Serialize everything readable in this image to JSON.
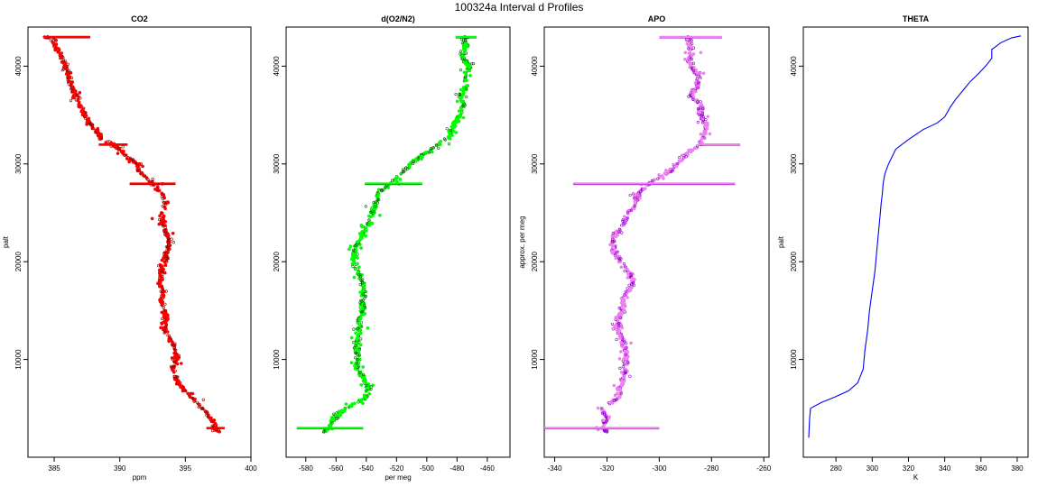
{
  "figure": {
    "title": "100324a   Interval d Profiles"
  },
  "chart_data": [
    {
      "type": "scatter",
      "title": "CO2",
      "xlabel": "ppm",
      "ylabel": "palt",
      "xlim": [
        383,
        400
      ],
      "ylim": [
        0,
        44000
      ],
      "xticks": [
        "385",
        "390",
        "395",
        "400"
      ],
      "yticks": [
        "10000",
        "20000",
        "30000",
        "40000"
      ],
      "color": "#ff0000",
      "edge_color": "#8b0000",
      "series": [
        {
          "values": [
            [
              384.5,
              43000
            ],
            [
              385.0,
              42200
            ],
            [
              385.6,
              41000
            ],
            [
              386.0,
              39500
            ],
            [
              386.3,
              38000
            ],
            [
              386.8,
              36500
            ],
            [
              387.3,
              35000
            ],
            [
              387.9,
              33800
            ],
            [
              388.6,
              32600
            ],
            [
              389.5,
              32000
            ],
            [
              390.3,
              31000
            ],
            [
              391.3,
              30000
            ],
            [
              391.6,
              29000
            ],
            [
              392.5,
              28000
            ],
            [
              393.2,
              27000
            ],
            [
              393.5,
              26000
            ],
            [
              393.2,
              25000
            ],
            [
              393.3,
              24000
            ],
            [
              393.5,
              23000
            ],
            [
              393.8,
              22000
            ],
            [
              393.6,
              21000
            ],
            [
              393.4,
              20000
            ],
            [
              393.2,
              19000
            ],
            [
              393.1,
              18000
            ],
            [
              393.3,
              17000
            ],
            [
              393.2,
              16000
            ],
            [
              393.4,
              15000
            ],
            [
              393.6,
              14000
            ],
            [
              393.4,
              13000
            ],
            [
              393.9,
              12000
            ],
            [
              394.2,
              11000
            ],
            [
              394.4,
              10000
            ],
            [
              394.0,
              9000
            ],
            [
              394.3,
              8000
            ],
            [
              394.8,
              7000
            ],
            [
              395.6,
              6000
            ],
            [
              396.3,
              5000
            ],
            [
              396.9,
              4000
            ],
            [
              397.3,
              3000
            ],
            [
              397.6,
              2600
            ]
          ]
        }
      ],
      "bands": [
        [
          43000,
          386.0,
          3.5
        ],
        [
          32000,
          389.5,
          2.2
        ],
        [
          28000,
          392.5,
          3.5
        ],
        [
          3000,
          397.3,
          1.4
        ]
      ]
    },
    {
      "type": "scatter",
      "title": "d(O2/N2)",
      "xlabel": "per meg",
      "ylabel": "",
      "xlim": [
        -593,
        -445
      ],
      "ylim": [
        0,
        44000
      ],
      "xticks": [
        "-580",
        "-560",
        "-540",
        "-520",
        "-500",
        "-480",
        "-460"
      ],
      "yticks": [
        "10000",
        "20000",
        "30000",
        "40000"
      ],
      "color": "#00ff00",
      "edge_color": "#006400",
      "series": [
        {
          "values": [
            [
              -475,
              43000
            ],
            [
              -474,
              42000
            ],
            [
              -477,
              41000
            ],
            [
              -472,
              40000
            ],
            [
              -474,
              39000
            ],
            [
              -473,
              38000
            ],
            [
              -478,
              37000
            ],
            [
              -476,
              36000
            ],
            [
              -478,
              35000
            ],
            [
              -482,
              34000
            ],
            [
              -484,
              33000
            ],
            [
              -492,
              32000
            ],
            [
              -502,
              31000
            ],
            [
              -511,
              30000
            ],
            [
              -517,
              29000
            ],
            [
              -524,
              28000
            ],
            [
              -532,
              27000
            ],
            [
              -534,
              26000
            ],
            [
              -536,
              25000
            ],
            [
              -538,
              24000
            ],
            [
              -542,
              23000
            ],
            [
              -546,
              22000
            ],
            [
              -548,
              21000
            ],
            [
              -548,
              20000
            ],
            [
              -545,
              19000
            ],
            [
              -543,
              18000
            ],
            [
              -542,
              17000
            ],
            [
              -543,
              16000
            ],
            [
              -542,
              15000
            ],
            [
              -545,
              14000
            ],
            [
              -544,
              13000
            ],
            [
              -546,
              12000
            ],
            [
              -546,
              11000
            ],
            [
              -546,
              10000
            ],
            [
              -546,
              9000
            ],
            [
              -541,
              8000
            ],
            [
              -538,
              7000
            ],
            [
              -541,
              6000
            ],
            [
              -554,
              5000
            ],
            [
              -562,
              4000
            ],
            [
              -565,
              3000
            ],
            [
              -568,
              2600
            ]
          ]
        }
      ],
      "bands": [
        [
          43000,
          -474,
          14
        ],
        [
          28000,
          -522,
          38
        ],
        [
          3000,
          -564,
          44
        ]
      ]
    },
    {
      "type": "scatter",
      "title": "APO",
      "xlabel": "",
      "ylabel": "approx. per meg",
      "xlim": [
        -344,
        -258
      ],
      "ylim": [
        0,
        44000
      ],
      "xticks": [
        "-340",
        "-320",
        "-300",
        "-280",
        "-260"
      ],
      "yticks": [
        "10000",
        "20000",
        "30000",
        "40000"
      ],
      "color": "#ee82ee",
      "edge_color": "#9400d3",
      "series": [
        {
          "values": [
            [
              -289,
              43000
            ],
            [
              -288,
              42000
            ],
            [
              -288,
              41000
            ],
            [
              -288,
              40000
            ],
            [
              -285,
              39000
            ],
            [
              -285,
              38000
            ],
            [
              -288,
              37000
            ],
            [
              -284,
              36000
            ],
            [
              -284,
              35000
            ],
            [
              -282,
              34000
            ],
            [
              -283,
              33000
            ],
            [
              -284,
              32000
            ],
            [
              -290,
              31000
            ],
            [
              -293,
              30000
            ],
            [
              -297,
              29000
            ],
            [
              -304,
              28000
            ],
            [
              -308,
              27000
            ],
            [
              -309,
              26000
            ],
            [
              -312,
              25000
            ],
            [
              -313,
              24000
            ],
            [
              -316,
              23000
            ],
            [
              -318,
              22000
            ],
            [
              -317,
              21000
            ],
            [
              -315,
              20000
            ],
            [
              -312,
              19000
            ],
            [
              -310,
              18000
            ],
            [
              -312,
              17000
            ],
            [
              -314,
              16000
            ],
            [
              -314,
              15000
            ],
            [
              -316,
              14000
            ],
            [
              -316,
              13000
            ],
            [
              -314,
              12000
            ],
            [
              -313,
              11000
            ],
            [
              -313,
              10000
            ],
            [
              -313,
              9000
            ],
            [
              -314,
              8000
            ],
            [
              -315,
              7000
            ],
            [
              -316,
              6000
            ],
            [
              -322,
              5000
            ],
            [
              -320,
              4000
            ],
            [
              -322,
              3000
            ],
            [
              -320,
              2600
            ]
          ]
        }
      ],
      "bands": [
        [
          43000,
          -288,
          24
        ],
        [
          32000,
          -277,
          16
        ],
        [
          28000,
          -302,
          62
        ],
        [
          3000,
          -322,
          44
        ]
      ]
    },
    {
      "type": "line",
      "title": "THETA",
      "xlabel": "K",
      "ylabel": "palt",
      "xlim": [
        262,
        386
      ],
      "ylim": [
        0,
        44000
      ],
      "xticks": [
        "280",
        "300",
        "320",
        "340",
        "360",
        "380"
      ],
      "yticks": [
        "10000",
        "20000",
        "30000",
        "40000"
      ],
      "color": "#0000ff",
      "series": [
        {
          "values": [
            [
              265,
              2000
            ],
            [
              265.5,
              4000
            ],
            [
              266,
              5000
            ],
            [
              272,
              5600
            ],
            [
              280,
              6200
            ],
            [
              287,
              6800
            ],
            [
              292,
              7600
            ],
            [
              295,
              9000
            ],
            [
              296,
              11000
            ],
            [
              297.5,
              13000
            ],
            [
              298.5,
              15000
            ],
            [
              300,
              17000
            ],
            [
              301.5,
              19000
            ],
            [
              302.5,
              21000
            ],
            [
              303.5,
              23000
            ],
            [
              304.5,
              25000
            ],
            [
              305,
              26000
            ],
            [
              305.6,
              27000
            ],
            [
              306,
              28000
            ],
            [
              307,
              29000
            ],
            [
              309,
              30000
            ],
            [
              313,
              31500
            ],
            [
              320,
              32500
            ],
            [
              328,
              33500
            ],
            [
              336,
              34200
            ],
            [
              340,
              34800
            ],
            [
              343,
              35800
            ],
            [
              346,
              36600
            ],
            [
              350,
              37500
            ],
            [
              354,
              38400
            ],
            [
              359,
              39300
            ],
            [
              363,
              40100
            ],
            [
              366,
              40800
            ],
            [
              366,
              41700
            ],
            [
              371,
              42400
            ],
            [
              377,
              42900
            ],
            [
              382,
              43100
            ]
          ]
        }
      ]
    }
  ]
}
